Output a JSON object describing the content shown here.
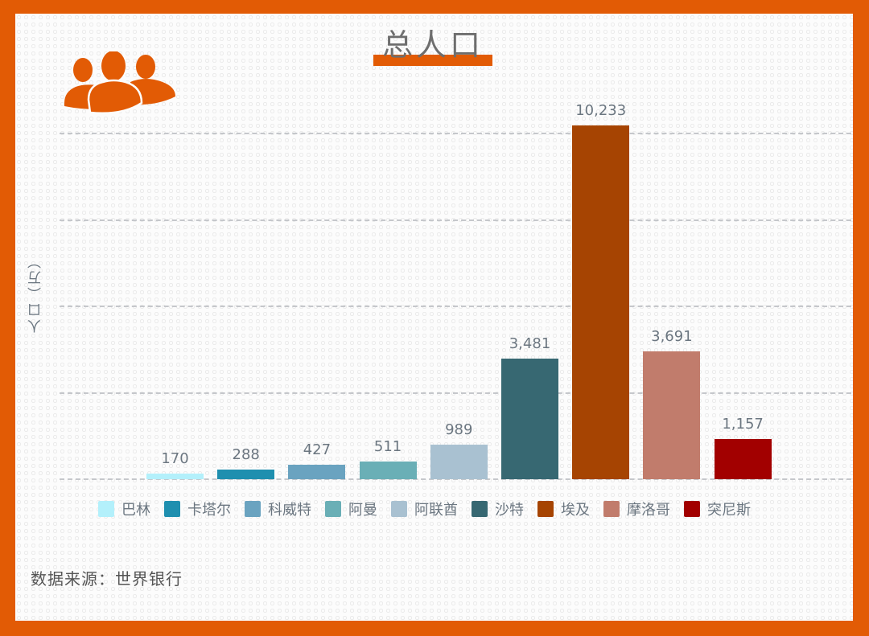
{
  "title": "总人口",
  "y_axis_label": "人口（万）",
  "source": "数据来源：世界银行",
  "icon": "people-group-icon",
  "colors": {
    "frame": "#e25b05",
    "title_bar": "#e25b05",
    "grid": "#c5c7cb",
    "text": "#6b7680"
  },
  "chart_data": {
    "type": "bar",
    "title": "总人口",
    "xlabel": "",
    "ylabel": "人口（万）",
    "ylim": [
      0,
      10000
    ],
    "grid": true,
    "grid_style": "dashed",
    "grid_values": [
      0,
      2500,
      5000,
      7500,
      10000
    ],
    "y_tick_labels_visible": false,
    "legend_position": "bottom",
    "categories": [
      "巴林",
      "卡塔尔",
      "科威特",
      "阿曼",
      "阿联酋",
      "沙特",
      "埃及",
      "摩洛哥",
      "突尼斯"
    ],
    "values": [
      170,
      288,
      427,
      511,
      989,
      3481,
      10233,
      3691,
      1157
    ],
    "value_labels": [
      "170",
      "288",
      "427",
      "511",
      "989",
      "3,481",
      "10,233",
      "3,691",
      "1,157"
    ],
    "bar_colors": [
      "#b3f0fb",
      "#1f8faf",
      "#6aa3c0",
      "#6aafb6",
      "#a9c1d1",
      "#376872",
      "#a64402",
      "#c17c6c",
      "#a20000"
    ],
    "source": "数据来源：世界银行"
  },
  "legend": [
    {
      "label": "巴林",
      "color": "#b3f0fb"
    },
    {
      "label": "卡塔尔",
      "color": "#1f8faf"
    },
    {
      "label": "科威特",
      "color": "#6aa3c0"
    },
    {
      "label": "阿曼",
      "color": "#6aafb6"
    },
    {
      "label": "阿联酋",
      "color": "#a9c1d1"
    },
    {
      "label": "沙特",
      "color": "#376872"
    },
    {
      "label": "埃及",
      "color": "#a64402"
    },
    {
      "label": "摩洛哥",
      "color": "#c17c6c"
    },
    {
      "label": "突尼斯",
      "color": "#a20000"
    }
  ]
}
